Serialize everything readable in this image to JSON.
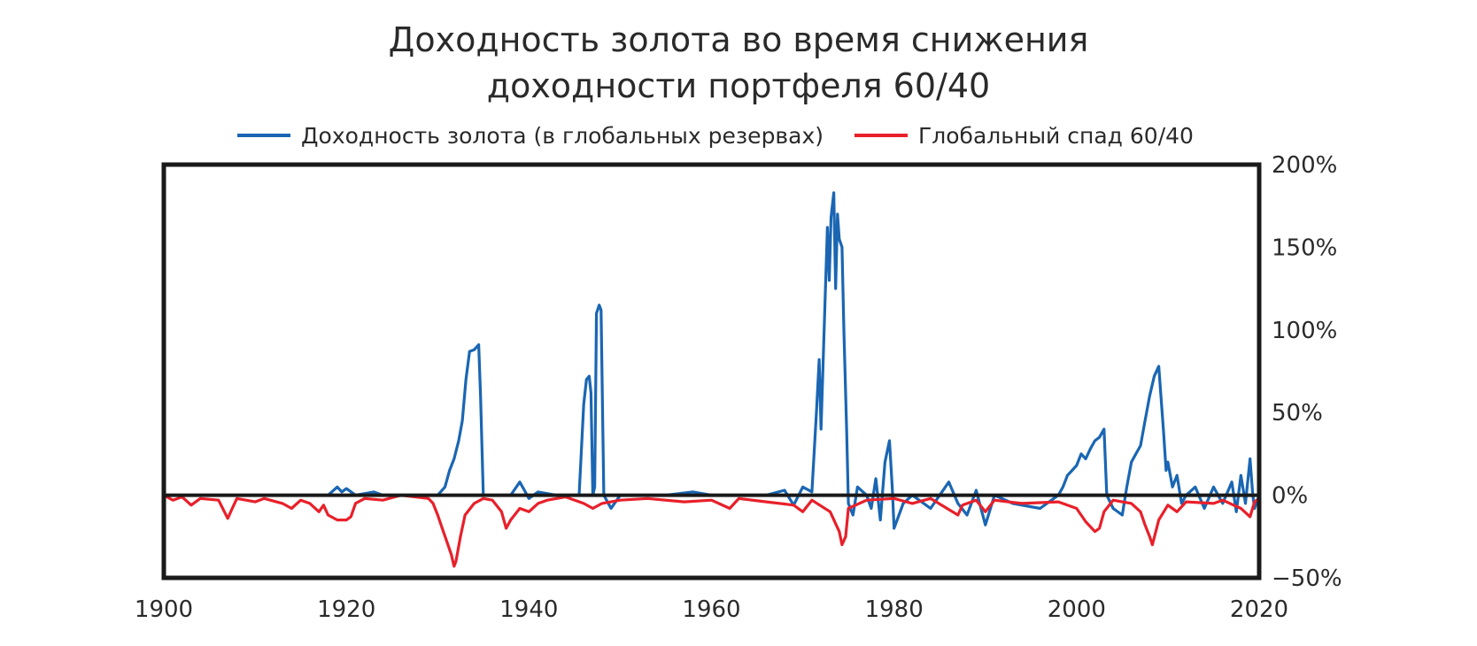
{
  "chart_data": {
    "type": "line",
    "title": "Доходность золота во время снижения доходности портфеля 60/40",
    "title_lines": [
      "Доходность золота во время снижения",
      "доходности портфеля 60/40"
    ],
    "xlabel": "",
    "ylabel": "",
    "xlim": [
      1900,
      2020
    ],
    "ylim": [
      -50,
      200
    ],
    "x_ticks": [
      "1900",
      "1920",
      "1940",
      "1960",
      "1980",
      "2000",
      "2020"
    ],
    "y_ticks": [
      "200%",
      "150%",
      "100%",
      "50%",
      "0%",
      "−50%"
    ],
    "y_axis_side": "right",
    "legend_position": "top",
    "grid": false,
    "colors": {
      "gold": "#1a66b3",
      "drawdown": "#e8202a",
      "zero_line": "#1a1a1a",
      "frame": "#1a1a1a"
    },
    "series": [
      {
        "name": "Доходность золота (в глобальных резервах)",
        "color": "#1a66b3",
        "points": [
          [
            1900,
            0
          ],
          [
            1918,
            0
          ],
          [
            1919,
            5
          ],
          [
            1919.5,
            2
          ],
          [
            1920,
            4
          ],
          [
            1921,
            0
          ],
          [
            1923,
            2
          ],
          [
            1924,
            0
          ],
          [
            1930,
            0
          ],
          [
            1930.8,
            5
          ],
          [
            1931.3,
            15
          ],
          [
            1931.8,
            22
          ],
          [
            1932.3,
            33
          ],
          [
            1932.7,
            45
          ],
          [
            1933.1,
            70
          ],
          [
            1933.5,
            87
          ],
          [
            1934.0,
            88
          ],
          [
            1934.5,
            91
          ],
          [
            1934.7,
            60
          ],
          [
            1935.0,
            0
          ],
          [
            1938,
            0
          ],
          [
            1939,
            8
          ],
          [
            1939.5,
            3
          ],
          [
            1940,
            -2
          ],
          [
            1941,
            2
          ],
          [
            1943,
            0
          ],
          [
            1945.5,
            0
          ],
          [
            1946.0,
            55
          ],
          [
            1946.3,
            70
          ],
          [
            1946.6,
            72
          ],
          [
            1946.8,
            62
          ],
          [
            1947.0,
            0
          ],
          [
            1947.2,
            5
          ],
          [
            1947.4,
            110
          ],
          [
            1947.7,
            115
          ],
          [
            1947.9,
            112
          ],
          [
            1948.2,
            0
          ],
          [
            1949,
            -8
          ],
          [
            1950,
            0
          ],
          [
            1955,
            0
          ],
          [
            1958,
            2
          ],
          [
            1960,
            0
          ],
          [
            1966,
            0
          ],
          [
            1968,
            3
          ],
          [
            1969,
            -6
          ],
          [
            1970,
            5
          ],
          [
            1971,
            2
          ],
          [
            1971.5,
            50
          ],
          [
            1971.8,
            82
          ],
          [
            1972.0,
            40
          ],
          [
            1972.4,
            110
          ],
          [
            1972.7,
            162
          ],
          [
            1972.9,
            130
          ],
          [
            1973.1,
            168
          ],
          [
            1973.4,
            183
          ],
          [
            1973.6,
            125
          ],
          [
            1973.8,
            170
          ],
          [
            1974.0,
            155
          ],
          [
            1974.3,
            150
          ],
          [
            1974.5,
            100
          ],
          [
            1974.8,
            40
          ],
          [
            1975.0,
            -5
          ],
          [
            1975.5,
            -12
          ],
          [
            1976,
            5
          ],
          [
            1977,
            0
          ],
          [
            1977.5,
            -8
          ],
          [
            1978,
            10
          ],
          [
            1978.5,
            -15
          ],
          [
            1979,
            20
          ],
          [
            1979.5,
            33
          ],
          [
            1979.8,
            5
          ],
          [
            1980,
            -20
          ],
          [
            1981,
            -5
          ],
          [
            1982,
            0
          ],
          [
            1984,
            -8
          ],
          [
            1986,
            8
          ],
          [
            1987,
            -5
          ],
          [
            1988,
            -12
          ],
          [
            1989,
            3
          ],
          [
            1990,
            -18
          ],
          [
            1991,
            0
          ],
          [
            1993,
            -5
          ],
          [
            1996,
            -8
          ],
          [
            1998,
            0
          ],
          [
            1998.5,
            5
          ],
          [
            1999,
            12
          ],
          [
            1999.5,
            15
          ],
          [
            2000,
            18
          ],
          [
            2000.5,
            25
          ],
          [
            2001,
            22
          ],
          [
            2001.5,
            28
          ],
          [
            2002,
            33
          ],
          [
            2002.5,
            35
          ],
          [
            2003,
            40
          ],
          [
            2003.3,
            0
          ],
          [
            2004,
            -8
          ],
          [
            2005,
            -12
          ],
          [
            2005.5,
            5
          ],
          [
            2006,
            20
          ],
          [
            2006.5,
            25
          ],
          [
            2007,
            30
          ],
          [
            2007.5,
            45
          ],
          [
            2008,
            60
          ],
          [
            2008.5,
            72
          ],
          [
            2009,
            78
          ],
          [
            2009.5,
            40
          ],
          [
            2009.8,
            15
          ],
          [
            2010,
            20
          ],
          [
            2010.5,
            5
          ],
          [
            2011,
            12
          ],
          [
            2011.5,
            -5
          ],
          [
            2012,
            0
          ],
          [
            2013,
            5
          ],
          [
            2014,
            -8
          ],
          [
            2015,
            5
          ],
          [
            2016,
            -5
          ],
          [
            2017,
            8
          ],
          [
            2017.5,
            -10
          ],
          [
            2018,
            12
          ],
          [
            2018.5,
            -5
          ],
          [
            2019,
            22
          ],
          [
            2019.3,
            0
          ],
          [
            2019.5,
            -8
          ],
          [
            2020,
            0
          ]
        ]
      },
      {
        "name": "Глобальный спад 60/40",
        "color": "#e8202a",
        "points": [
          [
            1900,
            0
          ],
          [
            1901,
            -3
          ],
          [
            1902,
            -1
          ],
          [
            1903,
            -6
          ],
          [
            1904,
            -2
          ],
          [
            1906,
            -3
          ],
          [
            1907,
            -14
          ],
          [
            1907.5,
            -8
          ],
          [
            1908,
            -2
          ],
          [
            1910,
            -4
          ],
          [
            1911,
            -2
          ],
          [
            1913,
            -5
          ],
          [
            1914,
            -8
          ],
          [
            1915,
            -3
          ],
          [
            1916,
            -5
          ],
          [
            1917,
            -10
          ],
          [
            1917.5,
            -6
          ],
          [
            1918,
            -12
          ],
          [
            1919,
            -15
          ],
          [
            1920,
            -15
          ],
          [
            1920.5,
            -13
          ],
          [
            1921,
            -5
          ],
          [
            1922,
            -2
          ],
          [
            1924,
            -3
          ],
          [
            1926,
            0
          ],
          [
            1929,
            -2
          ],
          [
            1929.5,
            -5
          ],
          [
            1930,
            -12
          ],
          [
            1930.5,
            -20
          ],
          [
            1931,
            -28
          ],
          [
            1931.5,
            -36
          ],
          [
            1931.8,
            -43
          ],
          [
            1932,
            -40
          ],
          [
            1932.5,
            -25
          ],
          [
            1933,
            -12
          ],
          [
            1934,
            -5
          ],
          [
            1935,
            -2
          ],
          [
            1936,
            -3
          ],
          [
            1937,
            -10
          ],
          [
            1937.5,
            -20
          ],
          [
            1938,
            -15
          ],
          [
            1939,
            -8
          ],
          [
            1940,
            -10
          ],
          [
            1941,
            -5
          ],
          [
            1942,
            -3
          ],
          [
            1944,
            -1
          ],
          [
            1946,
            -5
          ],
          [
            1947,
            -8
          ],
          [
            1948,
            -5
          ],
          [
            1950,
            -3
          ],
          [
            1953,
            -2
          ],
          [
            1957,
            -4
          ],
          [
            1960,
            -3
          ],
          [
            1962,
            -8
          ],
          [
            1963,
            -2
          ],
          [
            1966,
            -4
          ],
          [
            1969,
            -6
          ],
          [
            1970,
            -10
          ],
          [
            1971,
            -3
          ],
          [
            1973,
            -10
          ],
          [
            1974,
            -22
          ],
          [
            1974.3,
            -30
          ],
          [
            1974.7,
            -25
          ],
          [
            1975,
            -8
          ],
          [
            1977,
            -3
          ],
          [
            1980,
            -2
          ],
          [
            1982,
            -5
          ],
          [
            1984,
            -2
          ],
          [
            1987,
            -12
          ],
          [
            1987.5,
            -6
          ],
          [
            1989,
            -3
          ],
          [
            1990,
            -10
          ],
          [
            1991,
            -3
          ],
          [
            1994,
            -5
          ],
          [
            1998,
            -4
          ],
          [
            2000,
            -8
          ],
          [
            2001,
            -16
          ],
          [
            2002,
            -22
          ],
          [
            2002.5,
            -20
          ],
          [
            2003,
            -10
          ],
          [
            2004,
            -3
          ],
          [
            2006,
            -5
          ],
          [
            2007,
            -10
          ],
          [
            2007.5,
            -18
          ],
          [
            2008,
            -25
          ],
          [
            2008.3,
            -30
          ],
          [
            2009,
            -15
          ],
          [
            2010,
            -6
          ],
          [
            2011,
            -10
          ],
          [
            2012,
            -4
          ],
          [
            2015,
            -5
          ],
          [
            2016,
            -3
          ],
          [
            2018,
            -8
          ],
          [
            2019,
            -13
          ],
          [
            2019.5,
            -4
          ],
          [
            2020,
            -2
          ]
        ]
      }
    ]
  }
}
